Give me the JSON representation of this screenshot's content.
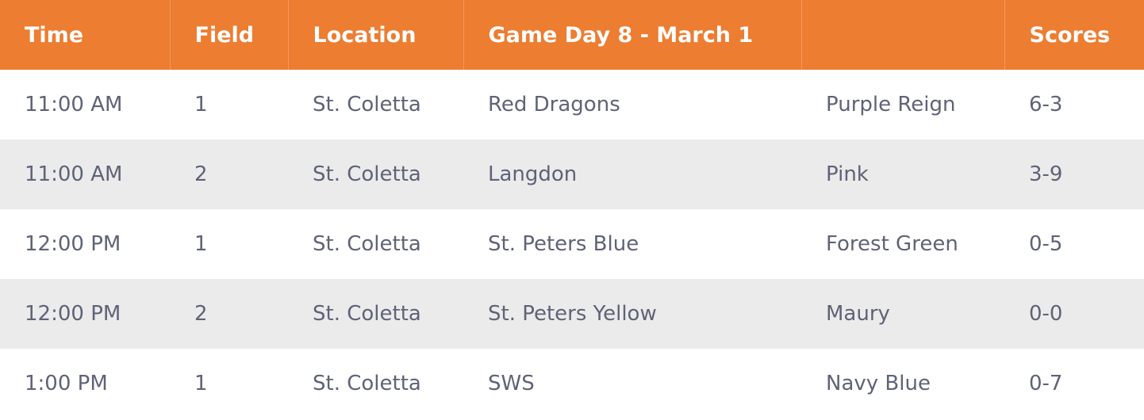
{
  "header": {
    "time": "Time",
    "field": "Field",
    "location": "Location",
    "game_day": "Game Day 8 - March 1",
    "away": "",
    "scores": "Scores"
  },
  "rows": [
    {
      "time": "11:00 AM",
      "field": "1",
      "location": "St. Coletta",
      "home": "Red Dragons",
      "away": "Purple Reign",
      "score": "6-3"
    },
    {
      "time": "11:00 AM",
      "field": "2",
      "location": "St. Coletta",
      "home": "Langdon",
      "away": "Pink",
      "score": "3-9"
    },
    {
      "time": "12:00 PM",
      "field": "1",
      "location": "St. Coletta",
      "home": "St. Peters Blue",
      "away": "Forest Green",
      "score": "0-5"
    },
    {
      "time": "12:00 PM",
      "field": "2",
      "location": "St. Coletta",
      "home": "St. Peters Yellow",
      "away": "Maury",
      "score": "0-0"
    },
    {
      "time": "1:00 PM",
      "field": "1",
      "location": "St. Coletta",
      "home": "SWS",
      "away": "Navy Blue",
      "score": "0-7"
    }
  ],
  "colors": {
    "header_bg": "#ed7d31",
    "header_text": "#ffffff",
    "stripe_bg": "#ebebeb",
    "body_text": "#5f6377"
  }
}
